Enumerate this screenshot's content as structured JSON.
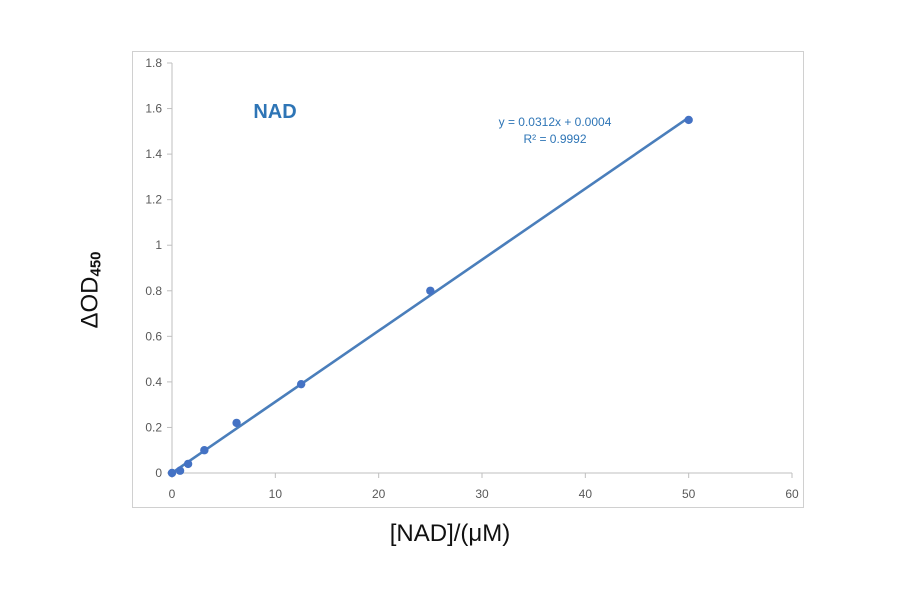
{
  "chart_data": {
    "type": "scatter",
    "title": "NAD",
    "ylabel_main": "ΔOD",
    "ylabel_sub": "450",
    "xlabel": "[NAD]/(μM)",
    "xlim": [
      0,
      60
    ],
    "ylim": [
      0,
      1.8
    ],
    "x_ticks": [
      "0",
      "10",
      "20",
      "30",
      "40",
      "50",
      "60"
    ],
    "y_ticks": [
      "0",
      "0.2",
      "0.4",
      "0.6",
      "0.8",
      "1",
      "1.2",
      "1.4",
      "1.6",
      "1.8"
    ],
    "grid": false,
    "series": [
      {
        "x": [
          0,
          0.78,
          1.56,
          3.13,
          6.25,
          12.5,
          25,
          50
        ],
        "y": [
          0.0,
          0.01,
          0.04,
          0.1,
          0.22,
          0.39,
          0.8,
          1.55
        ]
      }
    ],
    "trendline": {
      "slope": 0.0312,
      "intercept": 0.0004,
      "x_range": [
        0,
        50
      ]
    },
    "annotations": {
      "equation": "y = 0.0312x + 0.0004",
      "r_squared": "R² = 0.9992"
    },
    "colors": {
      "series": "#4472c4",
      "title": "#2e75b6",
      "axis": "#bfbfbf"
    }
  }
}
